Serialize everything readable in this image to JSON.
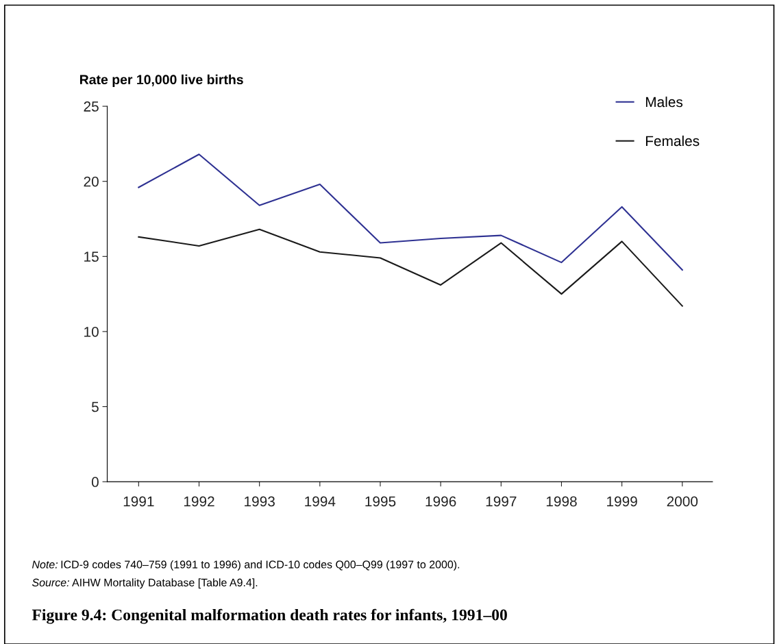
{
  "chart_data": {
    "type": "line",
    "title": "Figure 9.4: Congenital malformation death rates for infants, 1991–00",
    "ylabel": "Rate per 10,000 live births",
    "categories": [
      "1991",
      "1992",
      "1993",
      "1994",
      "1995",
      "1996",
      "1997",
      "1998",
      "1999",
      "2000"
    ],
    "series": [
      {
        "name": "Males",
        "color": "#2e3192",
        "values": [
          19.6,
          21.8,
          18.4,
          19.8,
          15.9,
          16.2,
          16.4,
          14.6,
          18.3,
          14.1
        ]
      },
      {
        "name": "Females",
        "color": "#1a1a1a",
        "values": [
          16.3,
          15.7,
          16.8,
          15.3,
          14.9,
          13.1,
          15.9,
          12.5,
          16.0,
          11.7
        ]
      }
    ],
    "ylim": [
      0,
      25
    ],
    "yticks": [
      0,
      5,
      10,
      15,
      20,
      25
    ],
    "grid": false,
    "legend": "top right",
    "marker": "none",
    "line_style": "solid",
    "annotations": [
      "Note: ICD-9 codes 740–759 (1991 to 1996) and ICD-10 codes Q00–Q99 (1997 to 2000).",
      "Source: AIHW Mortality Database [Table A9.4]."
    ]
  }
}
